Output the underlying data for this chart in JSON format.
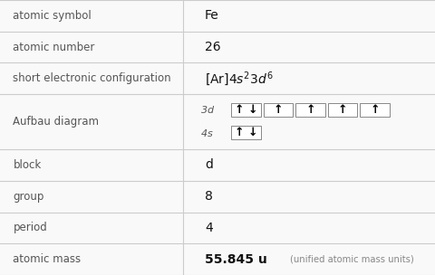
{
  "rows": [
    {
      "label": "atomic symbol",
      "value": "Fe",
      "type": "text"
    },
    {
      "label": "atomic number",
      "value": "26",
      "type": "text"
    },
    {
      "label": "short electronic configuration",
      "value": "[Ar]4s^2 3d^6",
      "type": "config"
    },
    {
      "label": "Aufbau diagram",
      "value": "",
      "type": "aufbau"
    },
    {
      "label": "block",
      "value": "d",
      "type": "text"
    },
    {
      "label": "group",
      "value": "8",
      "type": "text"
    },
    {
      "label": "period",
      "value": "4",
      "type": "text"
    },
    {
      "label": "atomic mass",
      "value": "55.845 u",
      "type": "mass"
    }
  ],
  "col_split": 0.42,
  "bg_color": "#f9f9f9",
  "border_color": "#cccccc",
  "label_color": "#555555",
  "value_color": "#111111",
  "label_fontsize": 8.5,
  "value_fontsize": 10,
  "mass_unit_color": "#888888",
  "row_heights_rel": [
    1,
    1,
    1,
    1.75,
    1,
    1,
    1,
    1
  ]
}
